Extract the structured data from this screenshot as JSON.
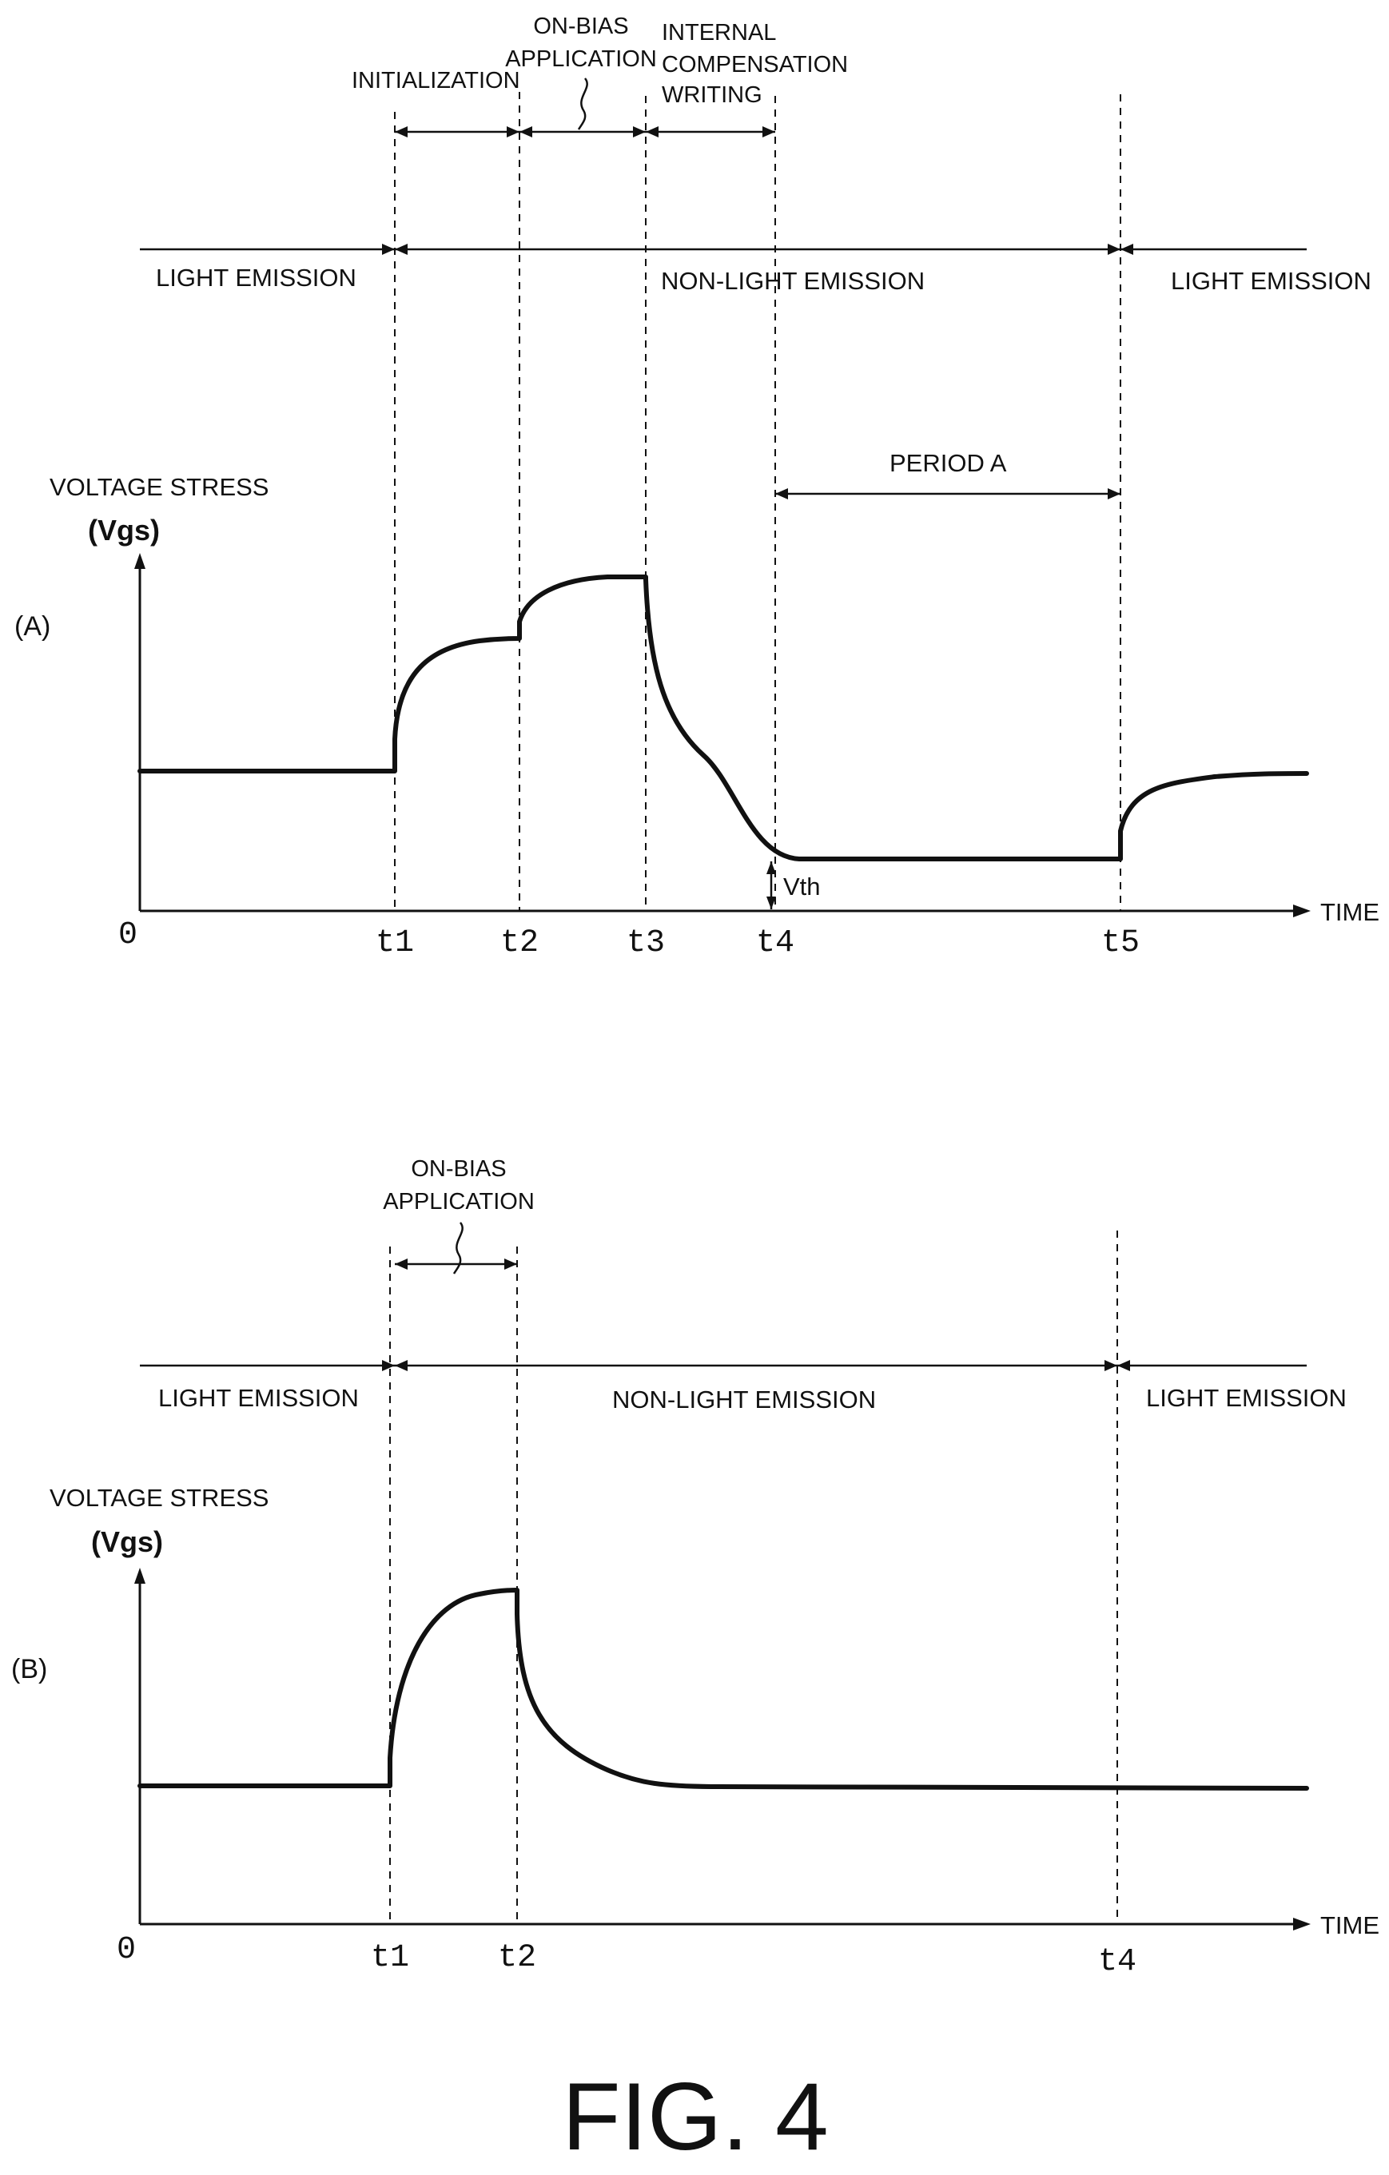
{
  "panel_a": {
    "panel_label": "(A)",
    "phases": {
      "initialization": "INITIALIZATION",
      "on_bias_line1": "ON-BIAS",
      "on_bias_line2": "APPLICATION",
      "internal_line1": "INTERNAL",
      "internal_line2": "COMPENSATION",
      "internal_line3": "WRITING"
    },
    "emission": {
      "left": "LIGHT EMISSION",
      "middle": "NON-LIGHT EMISSION",
      "right": "LIGHT EMISSION"
    },
    "period_label": "PERIOD A",
    "y_label_line1": "VOLTAGE STRESS",
    "y_label_line2": "(Vgs)",
    "x_label": "TIME",
    "origin": "0",
    "ticks": [
      "t1",
      "t2",
      "t3",
      "t4",
      "t5"
    ],
    "vth_label": "Vth"
  },
  "panel_b": {
    "panel_label": "(B)",
    "phases": {
      "on_bias_line1": "ON-BIAS",
      "on_bias_line2": "APPLICATION"
    },
    "emission": {
      "left": "LIGHT EMISSION",
      "middle": "NON-LIGHT EMISSION",
      "right": "LIGHT EMISSION"
    },
    "y_label_line1": "VOLTAGE STRESS",
    "y_label_line2": "(Vgs)",
    "x_label": "TIME",
    "origin": "0",
    "ticks": [
      "t1",
      "t2",
      "t4"
    ]
  },
  "figure_caption": "FIG. 4"
}
